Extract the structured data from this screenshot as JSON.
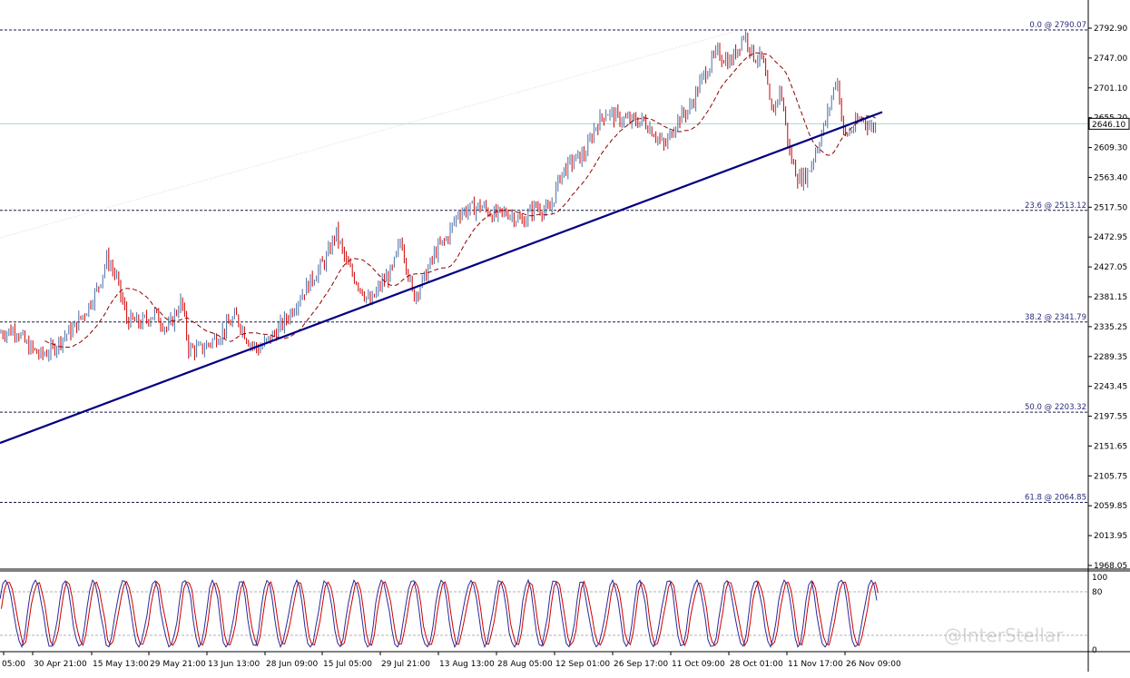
{
  "watermark": "@InterStellar",
  "main_chart": {
    "current_price_label": "2646.10",
    "current_price": 2646.1,
    "y_ticks": [
      "2792.90",
      "2747.00",
      "2701.10",
      "2655.20",
      "2609.30",
      "2563.40",
      "2517.50",
      "2472.95",
      "2427.05",
      "2381.15",
      "2335.25",
      "2289.35",
      "2243.45",
      "2197.55",
      "2151.65",
      "2105.75",
      "2059.85",
      "2013.95",
      "1968.05"
    ],
    "fib_levels": [
      {
        "label": "0.0 @ 2790.07",
        "value": 2790.07
      },
      {
        "label": "23.6 @ 2513.12",
        "value": 2513.12
      },
      {
        "label": "38.2 @ 2341.79",
        "value": 2341.79
      },
      {
        "label": "50.0 @ 2203.32",
        "value": 2203.32
      },
      {
        "label": "61.8 @ 2064.85",
        "value": 2064.85
      }
    ],
    "x_ticks": [
      "05:00",
      "30 Apr 21:00",
      "15 May 13:00",
      "29 May 21:00",
      "13 Jun 13:00",
      "28 Jun 09:00",
      "15 Jul 05:00",
      "29 Jul 21:00",
      "13 Aug 13:00",
      "28 Aug 05:00",
      "12 Sep 01:00",
      "26 Sep 17:00",
      "11 Oct 09:00",
      "28 Oct 01:00",
      "11 Nov 17:00",
      "26 Nov 09:00"
    ],
    "colors": {
      "bull": "#4a6fa5",
      "bear": "#cc0000",
      "ma": "#8b0000",
      "trendline": "#000080",
      "fib": "#1a1a4a",
      "price_line": "#a8d4d4"
    }
  },
  "oscillator": {
    "y_ticks": [
      "100",
      "80",
      "0"
    ],
    "levels": [
      80,
      20
    ],
    "colors": {
      "main": "#2a2a9a",
      "signal": "#cc0000"
    }
  },
  "chart_data": [
    {
      "type": "candlestick",
      "title": "",
      "x": [
        "05:00",
        "30 Apr 21:00",
        "15 May 13:00",
        "29 May 21:00",
        "13 Jun 13:00",
        "28 Jun 09:00",
        "15 Jul 05:00",
        "29 Jul 21:00",
        "13 Aug 13:00",
        "28 Aug 05:00",
        "12 Sep 01:00",
        "26 Sep 17:00",
        "11 Oct 09:00",
        "28 Oct 01:00",
        "11 Nov 17:00",
        "26 Nov 09:00"
      ],
      "series": [
        {
          "name": "",
          "values": [
            2325,
            2305,
            2440,
            2345,
            2345,
            2310,
            2480,
            2470,
            2510,
            2495,
            2600,
            2665,
            2640,
            2785,
            2560,
            2646
          ]
        }
      ],
      "ylim": [
        1968.05,
        2792.9
      ],
      "fibonacci": [
        "0.0 @ 2790.07",
        "23.6 @ 2513.12",
        "38.2 @ 2341.79",
        "50.0 @ 2203.32",
        "61.8 @ 2064.85"
      ]
    },
    {
      "type": "line",
      "title": "",
      "ylim": [
        0,
        100
      ],
      "levels": [
        80,
        20
      ]
    }
  ]
}
